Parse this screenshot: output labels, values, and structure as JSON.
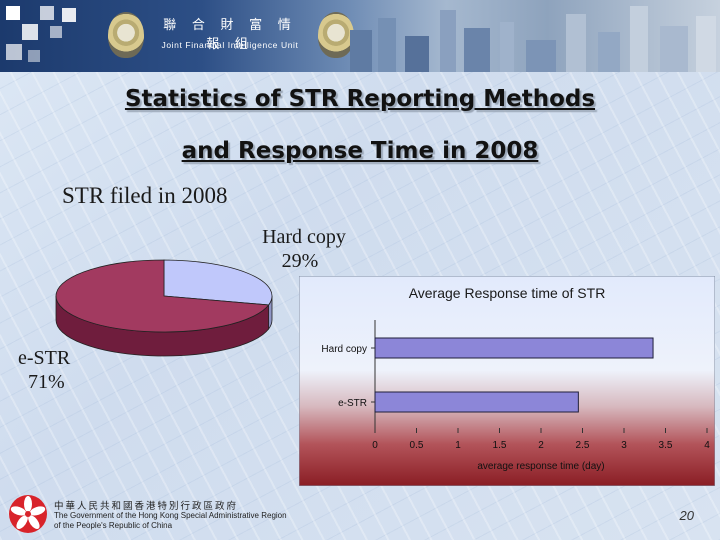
{
  "header": {
    "unit_name_cn": "聯 合 財 富 情 報 組",
    "unit_name_en": "Joint Financial Intelligence Unit"
  },
  "slide": {
    "title_line1": "Statistics of STR Reporting Methods",
    "title_line2": "and Response Time in 2008",
    "page_number": "20"
  },
  "footer": {
    "gov_cn": "中華人民共和國香港特別行政區政府",
    "gov_en_line1": "The Government of the Hong Kong Special Administrative Region",
    "gov_en_line2": "of the People's Republic of China"
  },
  "colors": {
    "pie_hardcopy": "#c0c8fb",
    "pie_estr": "#a23a60",
    "bar_fill": "#8c86d8"
  },
  "chart_data": [
    {
      "type": "pie",
      "title": "STR filed in 2008",
      "slices": [
        {
          "name": "Hard copy",
          "label": "Hard copy",
          "percent_label": "29%",
          "value": 29
        },
        {
          "name": "e-STR",
          "label": "e-STR",
          "percent_label": "71%",
          "value": 71
        }
      ]
    },
    {
      "type": "bar",
      "orientation": "horizontal",
      "title": "Average Response time of STR",
      "xlabel": "average response time (day)",
      "categories": [
        "Hard copy",
        "e-STR"
      ],
      "values": [
        3.35,
        2.45
      ],
      "xlim": [
        0,
        4
      ],
      "x_ticks": [
        "0",
        "0.5",
        "1",
        "1.5",
        "2",
        "2.5",
        "3",
        "3.5",
        "4"
      ]
    }
  ]
}
